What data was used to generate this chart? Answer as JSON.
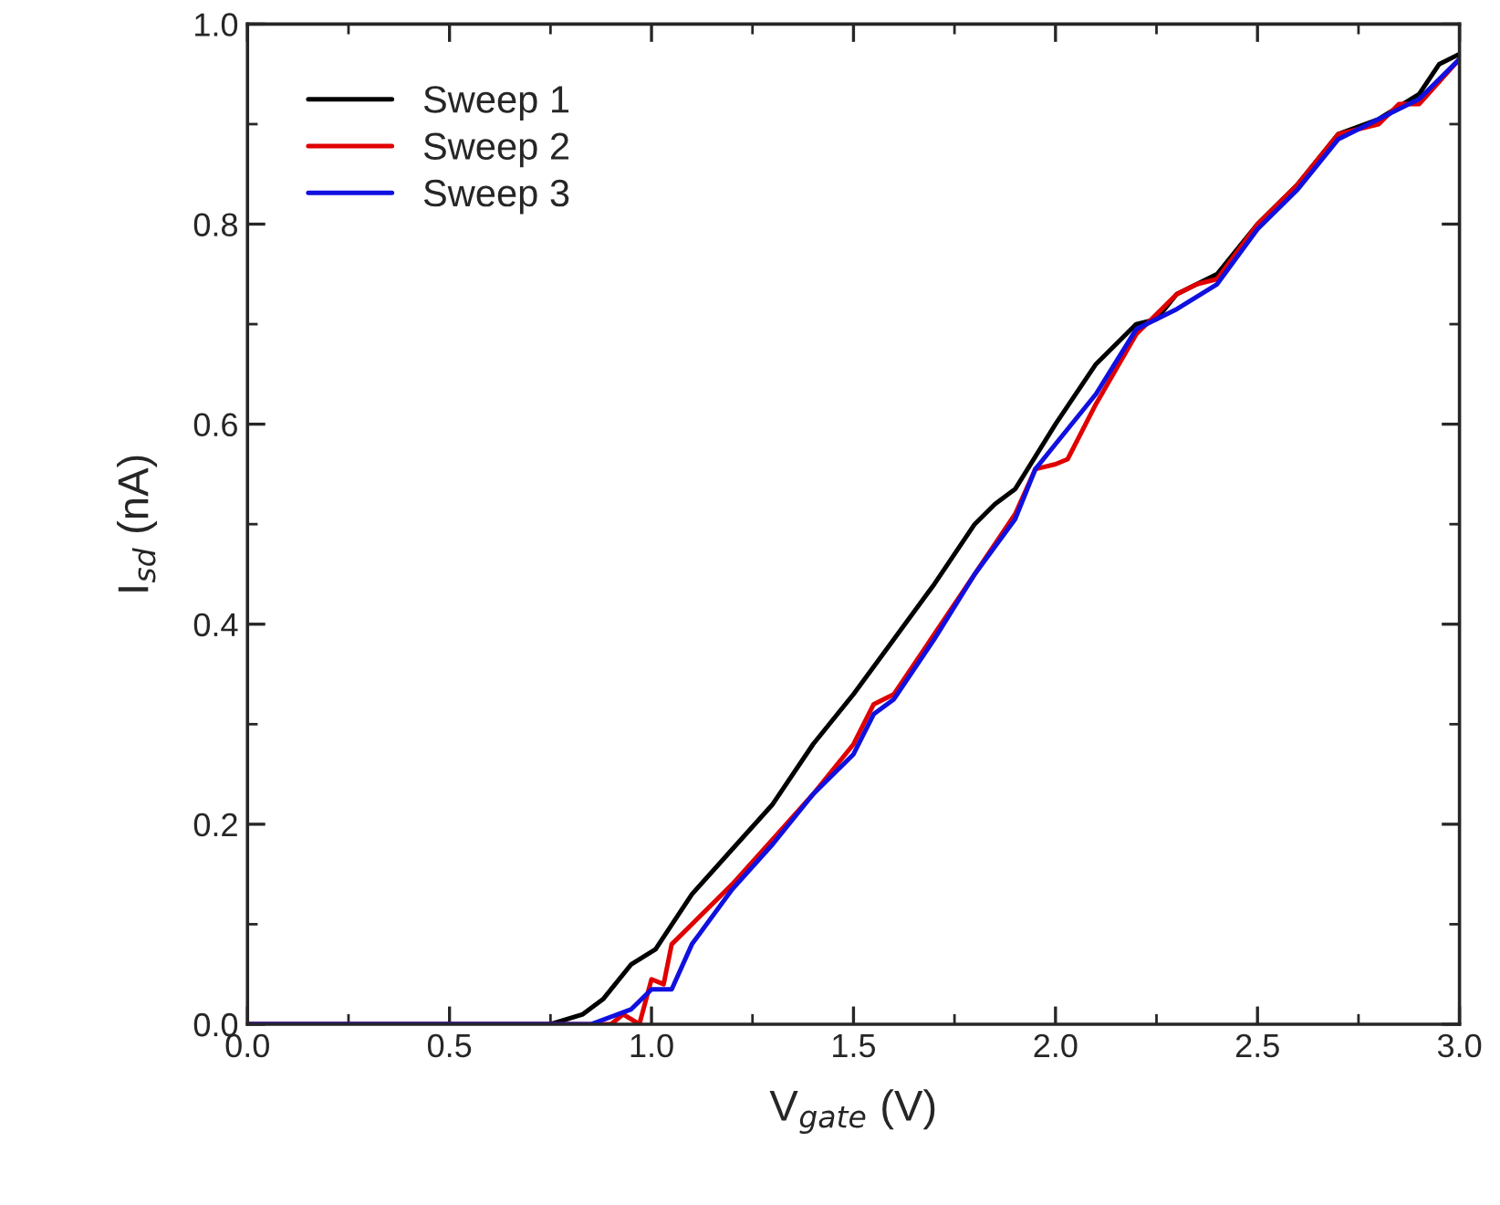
{
  "chart_data": {
    "type": "line",
    "xlabel": "V$_{gate}$ (V)",
    "ylabel": "I$_{sd}$ (nA)",
    "xlim": [
      0,
      3
    ],
    "ylim": [
      0,
      1
    ],
    "xticks": [
      {
        "value": 0,
        "label": "0.0"
      },
      {
        "value": 0.5,
        "label": "0.5"
      },
      {
        "value": 1,
        "label": "1.0"
      },
      {
        "value": 1.5,
        "label": "1.5"
      },
      {
        "value": 2,
        "label": "2.0"
      },
      {
        "value": 2.5,
        "label": "2.5"
      },
      {
        "value": 3,
        "label": "3.0"
      }
    ],
    "yticks": [
      {
        "value": 0,
        "label": "0.0"
      },
      {
        "value": 0.2,
        "label": "0.2"
      },
      {
        "value": 0.4,
        "label": "0.4"
      },
      {
        "value": 0.6,
        "label": "0.6"
      },
      {
        "value": 0.8,
        "label": "0.8"
      },
      {
        "value": 1,
        "label": "1.0"
      }
    ],
    "grid": false,
    "legend": "top left",
    "marker": "none",
    "line_style": "solid",
    "series": [
      {
        "name": "Sweep 1",
        "color": "#000000",
        "x": [
          0,
          0.5,
          0.75,
          0.83,
          0.88,
          0.95,
          1.01,
          1.1,
          1.2,
          1.3,
          1.4,
          1.5,
          1.6,
          1.7,
          1.8,
          1.85,
          1.9,
          2.0,
          2.1,
          2.2,
          2.25,
          2.3,
          2.4,
          2.5,
          2.6,
          2.7,
          2.8,
          2.9,
          2.95,
          3.0
        ],
        "values": [
          0,
          0,
          0,
          0.01,
          0.025,
          0.06,
          0.075,
          0.13,
          0.175,
          0.22,
          0.28,
          0.33,
          0.385,
          0.44,
          0.5,
          0.52,
          0.535,
          0.6,
          0.66,
          0.7,
          0.705,
          0.73,
          0.75,
          0.8,
          0.84,
          0.89,
          0.905,
          0.93,
          0.96,
          0.97
        ]
      },
      {
        "name": "Sweep 2",
        "color": "#e00000",
        "x": [
          0,
          0.5,
          0.9,
          0.93,
          0.97,
          1.0,
          1.03,
          1.05,
          1.1,
          1.2,
          1.3,
          1.4,
          1.5,
          1.55,
          1.6,
          1.7,
          1.8,
          1.9,
          1.95,
          2.0,
          2.03,
          2.1,
          2.2,
          2.3,
          2.35,
          2.4,
          2.5,
          2.6,
          2.7,
          2.8,
          2.85,
          2.9,
          3.0
        ],
        "values": [
          0,
          0,
          0,
          0.01,
          0,
          0.045,
          0.04,
          0.08,
          0.1,
          0.14,
          0.185,
          0.23,
          0.28,
          0.32,
          0.33,
          0.39,
          0.45,
          0.51,
          0.555,
          0.56,
          0.565,
          0.62,
          0.69,
          0.73,
          0.74,
          0.745,
          0.8,
          0.84,
          0.89,
          0.9,
          0.92,
          0.92,
          0.965
        ]
      },
      {
        "name": "Sweep 3",
        "color": "#1010e0",
        "x": [
          0,
          0.5,
          0.85,
          0.95,
          1.0,
          1.05,
          1.1,
          1.2,
          1.3,
          1.4,
          1.5,
          1.55,
          1.6,
          1.7,
          1.8,
          1.9,
          1.95,
          2.0,
          2.1,
          2.2,
          2.3,
          2.4,
          2.5,
          2.6,
          2.7,
          2.8,
          2.9,
          3.0
        ],
        "values": [
          0,
          0,
          0,
          0.015,
          0.035,
          0.035,
          0.08,
          0.135,
          0.18,
          0.23,
          0.27,
          0.31,
          0.325,
          0.385,
          0.45,
          0.505,
          0.555,
          0.58,
          0.63,
          0.695,
          0.715,
          0.74,
          0.795,
          0.835,
          0.885,
          0.905,
          0.925,
          0.965
        ]
      }
    ]
  }
}
